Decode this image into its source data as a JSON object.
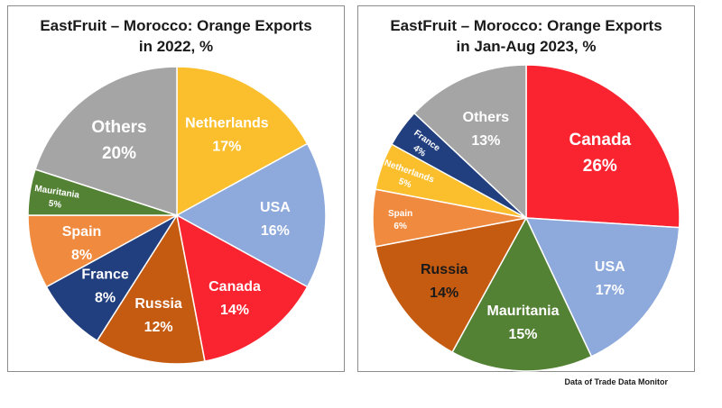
{
  "source_note": "Data of Trade Data Monitor",
  "chart_data": [
    {
      "type": "pie",
      "title_line1": "EastFruit – Morocco: Orange Exports",
      "title_line2": "in 2022, %",
      "unit": "%",
      "slices": [
        {
          "label": "Netherlands",
          "value": 17,
          "color": "#fbbf2d",
          "text_color": "#ffffff"
        },
        {
          "label": "USA",
          "value": 16,
          "color": "#8ea9db",
          "text_color": "#ffffff"
        },
        {
          "label": "Canada",
          "value": 14,
          "color": "#fa2431",
          "text_color": "#ffffff"
        },
        {
          "label": "Russia",
          "value": 12,
          "color": "#c55a11",
          "text_color": "#ffffff"
        },
        {
          "label": "France",
          "value": 8,
          "color": "#213f7f",
          "text_color": "#ffffff"
        },
        {
          "label": "Spain",
          "value": 8,
          "color": "#ef8a3e",
          "text_color": "#ffffff"
        },
        {
          "label": "Mauritania",
          "value": 5,
          "color": "#548235",
          "text_color": "#ffffff"
        },
        {
          "label": "Others",
          "value": 20,
          "color": "#a5a5a5",
          "text_color": "#ffffff"
        }
      ]
    },
    {
      "type": "pie",
      "title_line1": "EastFruit – Morocco: Orange Exports",
      "title_line2": "in Jan-Aug 2023, %",
      "unit": "%",
      "slices": [
        {
          "label": "Canada",
          "value": 26,
          "color": "#fa2431",
          "text_color": "#ffffff"
        },
        {
          "label": "USA",
          "value": 17,
          "color": "#8ea9db",
          "text_color": "#ffffff"
        },
        {
          "label": "Mauritania",
          "value": 15,
          "color": "#548235",
          "text_color": "#ffffff"
        },
        {
          "label": "Russia",
          "value": 14,
          "color": "#c55a11",
          "text_color": "#1a1a1a"
        },
        {
          "label": "Spain",
          "value": 6,
          "color": "#ef8a3e",
          "text_color": "#ffffff"
        },
        {
          "label": "Netherlands",
          "value": 5,
          "color": "#fbbf2d",
          "text_color": "#ffffff"
        },
        {
          "label": "France",
          "value": 4,
          "color": "#213f7f",
          "text_color": "#ffffff"
        },
        {
          "label": "Others",
          "value": 13,
          "color": "#a5a5a5",
          "text_color": "#ffffff"
        }
      ]
    }
  ]
}
